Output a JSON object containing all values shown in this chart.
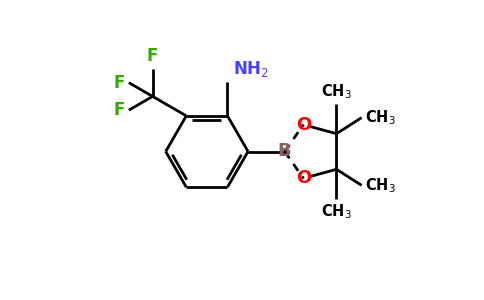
{
  "bg_color": "#ffffff",
  "bond_color": "#000000",
  "N_color": "#4444ff",
  "F_color": "#33aa00",
  "O_color": "#ff0000",
  "B_color": "#8b6060",
  "C_color": "#000000",
  "linewidth": 2.0,
  "figsize": [
    4.84,
    3.0
  ],
  "dpi": 100,
  "xlim": [
    -3.2,
    5.0
  ],
  "ylim": [
    -2.5,
    2.5
  ]
}
